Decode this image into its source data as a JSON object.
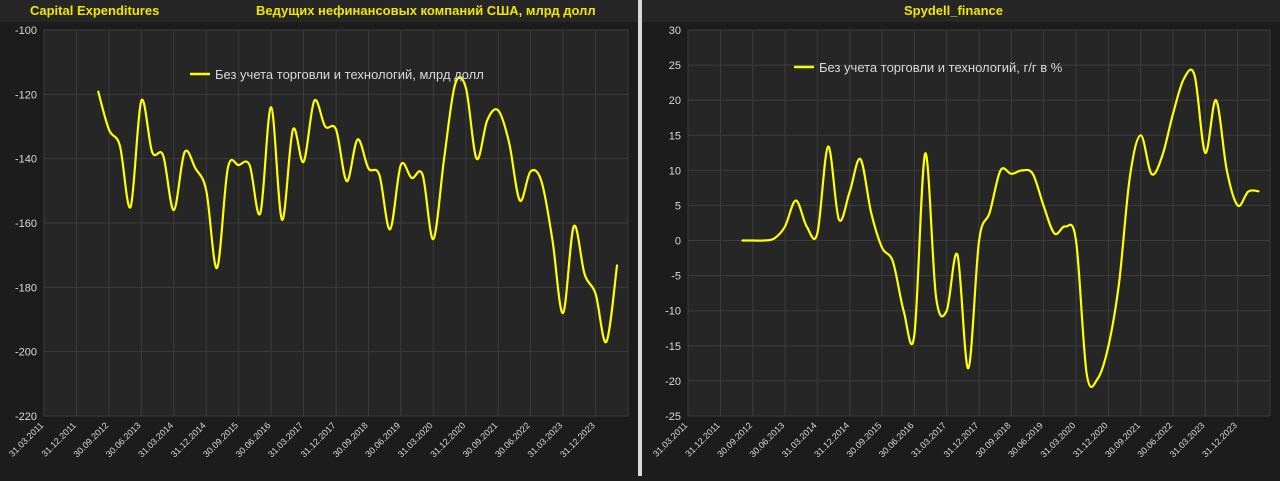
{
  "header": {
    "left_title": "Capital Expenditures",
    "center_title": "Ведущих нефинансовых компаний США, млрд долл",
    "right_title": "Spydell_finance"
  },
  "colors": {
    "line": "#ffff00",
    "accent": "#f2e600",
    "plot_bg": "#262626",
    "grid": "#3c3c3c",
    "text": "#d9d9d9"
  },
  "chart_data": [
    {
      "type": "line",
      "legend": "top-center",
      "grid": true,
      "x_tick_labels": [
        "31.03.2011",
        "31.12.2011",
        "30.09.2012",
        "30.06.2013",
        "31.03.2014",
        "31.12.2014",
        "30.09.2015",
        "30.06.2016",
        "31.03.2017",
        "31.12.2017",
        "30.09.2018",
        "30.06.2019",
        "31.03.2020",
        "31.12.2020",
        "30.09.2021",
        "30.06.2022",
        "31.03.2023",
        "31.12.2023"
      ],
      "y_tick_labels": [
        "-100",
        "-120",
        "-140",
        "-160",
        "-180",
        "-200",
        "-220"
      ],
      "ylim": [
        -220,
        -100
      ],
      "series": [
        {
          "name": "Без учета торговли и технологий, млрд долл",
          "x": [
            "30.06.2012",
            "30.09.2012",
            "31.12.2012",
            "31.03.2013",
            "30.06.2013",
            "30.09.2013",
            "31.12.2013",
            "31.03.2014",
            "30.06.2014",
            "30.09.2014",
            "31.12.2014",
            "31.03.2015",
            "30.06.2015",
            "30.09.2015",
            "31.12.2015",
            "31.03.2016",
            "30.06.2016",
            "30.09.2016",
            "31.12.2016",
            "31.03.2017",
            "30.06.2017",
            "30.09.2017",
            "31.12.2017",
            "31.03.2018",
            "30.06.2018",
            "30.09.2018",
            "31.12.2018",
            "31.03.2019",
            "30.06.2019",
            "30.09.2019",
            "31.12.2019",
            "31.03.2020",
            "30.06.2020",
            "30.09.2020",
            "31.12.2020",
            "31.03.2021",
            "30.06.2021",
            "30.09.2021",
            "31.12.2021",
            "31.03.2022",
            "30.06.2022",
            "30.09.2022",
            "31.12.2022",
            "31.03.2023",
            "30.06.2023",
            "30.09.2023",
            "31.12.2023",
            "31.03.2024",
            "30.06.2024"
          ],
          "values": [
            -119,
            -131,
            -136,
            -155,
            -122,
            -138,
            -139,
            -156,
            -138,
            -143,
            -150,
            -174,
            -143,
            -142,
            -142,
            -157,
            -124,
            -159,
            -131,
            -141,
            -122,
            -130,
            -131,
            -147,
            -134,
            -143,
            -145,
            -162,
            -142,
            -146,
            -145,
            -165,
            -140,
            -117,
            -118,
            -140,
            -128,
            -125,
            -135,
            -153,
            -144,
            -147,
            -165,
            -188,
            -161,
            -176,
            -182,
            -197,
            -173
          ]
        }
      ]
    },
    {
      "type": "line",
      "legend": "top-center",
      "grid": true,
      "x_tick_labels": [
        "31.03.2011",
        "31.12.2011",
        "30.09.2012",
        "30.06.2013",
        "31.03.2014",
        "31.12.2014",
        "30.09.2015",
        "30.06.2016",
        "31.03.2017",
        "31.12.2017",
        "30.09.2018",
        "30.06.2019",
        "31.03.2020",
        "31.12.2020",
        "30.09.2021",
        "30.06.2022",
        "31.03.2023",
        "31.12.2023"
      ],
      "y_tick_labels": [
        "30",
        "25",
        "20",
        "15",
        "10",
        "5",
        "0",
        "-5",
        "-10",
        "-15",
        "-20",
        "-25"
      ],
      "ylim": [
        -25,
        30
      ],
      "series": [
        {
          "name": "Без учета торговли и технологий, г/г в %",
          "x": [
            "30.06.2012",
            "30.09.2012",
            "31.12.2012",
            "31.03.2013",
            "30.06.2013",
            "30.09.2013",
            "31.12.2013",
            "31.03.2014",
            "30.06.2014",
            "30.09.2014",
            "31.12.2014",
            "31.03.2015",
            "30.06.2015",
            "30.09.2015",
            "31.12.2015",
            "31.03.2016",
            "30.06.2016",
            "30.09.2016",
            "31.12.2016",
            "31.03.2017",
            "30.06.2017",
            "30.09.2017",
            "31.12.2017",
            "31.03.2018",
            "30.06.2018",
            "30.09.2018",
            "31.12.2018",
            "31.03.2019",
            "30.06.2019",
            "30.09.2019",
            "31.12.2019",
            "31.03.2020",
            "30.06.2020",
            "30.09.2020",
            "31.12.2020",
            "31.03.2021",
            "30.06.2021",
            "30.09.2021",
            "31.12.2021",
            "31.03.2022",
            "30.06.2022",
            "30.09.2022",
            "31.12.2022",
            "31.03.2023",
            "30.06.2023",
            "30.09.2023",
            "31.12.2023",
            "31.03.2024",
            "30.06.2024"
          ],
          "values": [
            0,
            0,
            0,
            0.3,
            2,
            5.7,
            2,
            1,
            13.4,
            3,
            7,
            11.6,
            4,
            -1,
            -3,
            -10,
            -13.5,
            12.4,
            -8,
            -10,
            -2,
            -18.2,
            0,
            4,
            10,
            9.5,
            10,
            9.5,
            5,
            1,
            2,
            0,
            -19,
            -19.7,
            -15,
            -6,
            9,
            15,
            9.5,
            12,
            18,
            23,
            23.5,
            12.5,
            20,
            10,
            5,
            7,
            7
          ]
        }
      ]
    }
  ]
}
